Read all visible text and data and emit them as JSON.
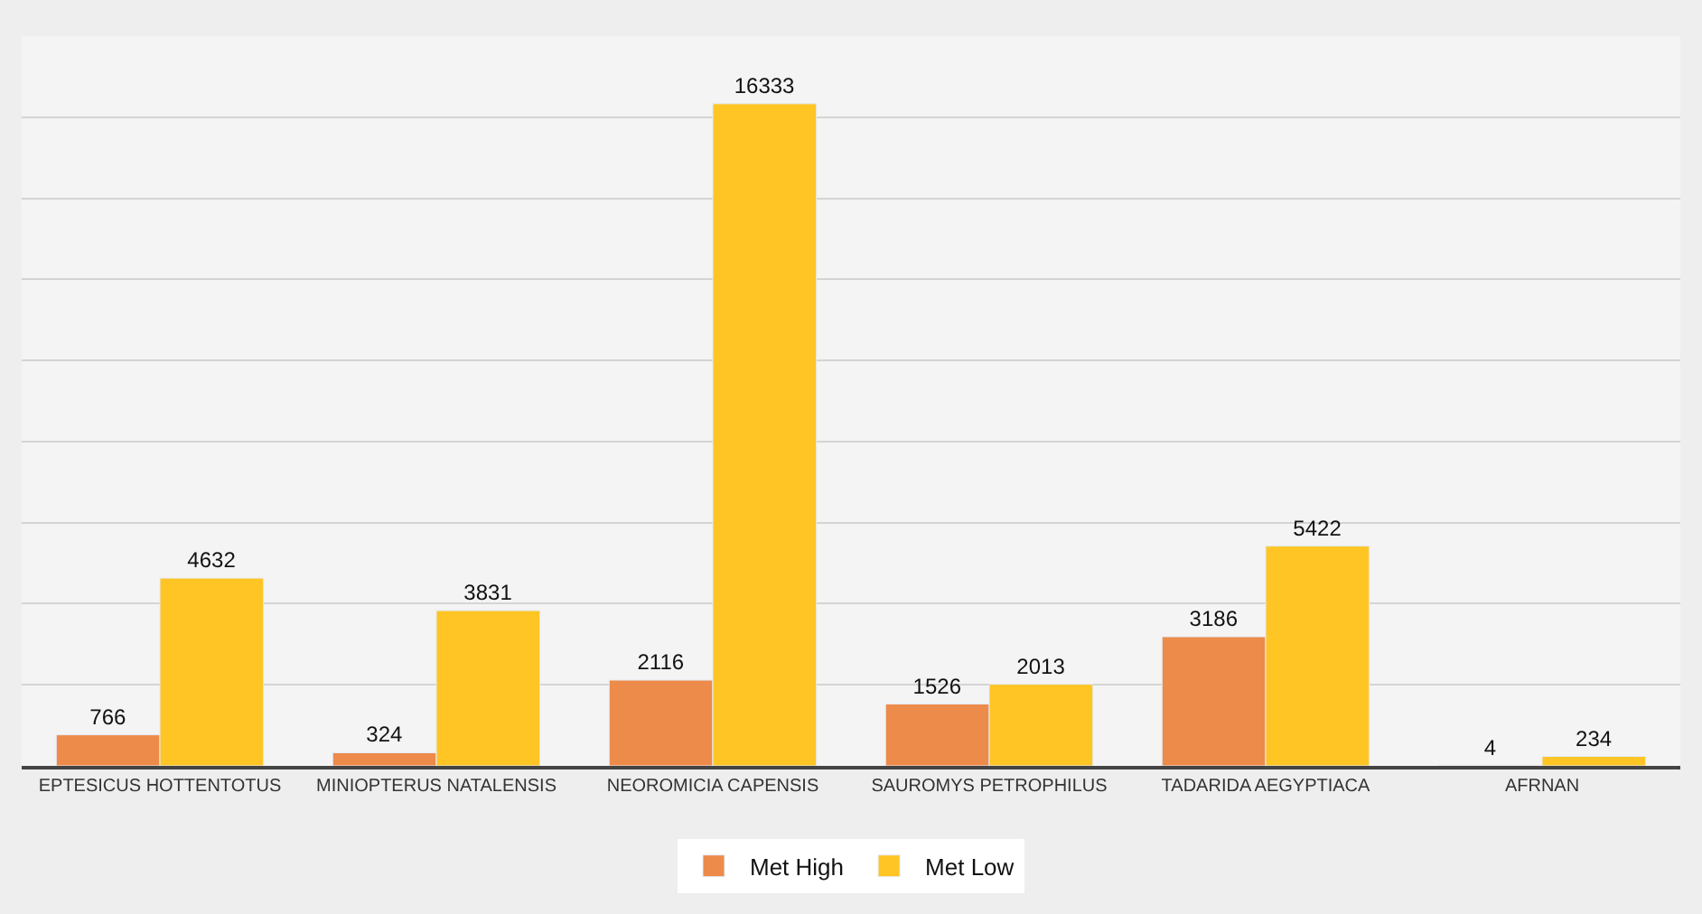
{
  "chart_data": {
    "type": "bar",
    "categories": [
      "EPTESICUS HOTTENTOTUS",
      "MINIOPTERUS NATALENSIS",
      "NEOROMICIA CAPENSIS",
      "SAUROMYS PETROPHILUS",
      "TADARIDA AEGYPTIACA",
      "AFRNAN"
    ],
    "series": [
      {
        "name": "Met High",
        "color": "#ed8b4a",
        "values": [
          766,
          324,
          2116,
          1526,
          3186,
          4
        ]
      },
      {
        "name": "Met Low",
        "color": "#fec524",
        "values": [
          4632,
          3831,
          16333,
          2013,
          5422,
          234
        ]
      }
    ],
    "ylim": [
      0,
      18000
    ],
    "yticks": [
      {
        "value": 0,
        "label": null
      },
      {
        "value": 2000,
        "label": null
      },
      {
        "value": 4000,
        "label": null
      },
      {
        "value": 6000,
        "label": null
      },
      {
        "value": 8000,
        "label": null
      },
      {
        "value": 10000,
        "label": null
      },
      {
        "value": 12000,
        "label": null
      },
      {
        "value": 14000,
        "label": null
      },
      {
        "value": 16000,
        "label": null
      }
    ],
    "tick_labels": "x",
    "grid": "y",
    "legend": "bottom",
    "data_labels": true
  }
}
